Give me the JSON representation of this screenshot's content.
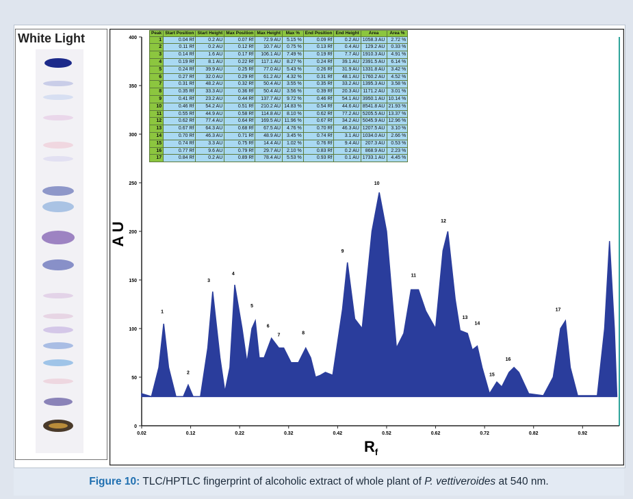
{
  "plate_label": "White Light",
  "caption": {
    "label": "Figure 10:",
    "text_before": "TLC/HPTLC fingerprint of alcoholic extract of whole plant of",
    "species": "P. vettiveroides",
    "text_after": "at 540 nm."
  },
  "table": {
    "header": [
      "Peak",
      "Start Position",
      "Start Height",
      "Max Position",
      "Max Height",
      "Max %",
      "End Position",
      "End Height",
      "Area",
      "Area %"
    ],
    "rows": [
      [
        "1",
        "0.04 Rf",
        "0.2 AU",
        "0.07 Rf",
        "72.9 AU",
        "5.15 %",
        "0.09 Rf",
        "0.2 AU",
        "1058.3 AU",
        "2.72 %"
      ],
      [
        "2",
        "0.11 Rf",
        "0.2 AU",
        "0.12 Rf",
        "10.7 AU",
        "0.75 %",
        "0.13 Rf",
        "0.4 AU",
        "129.2 AU",
        "0.33 %"
      ],
      [
        "3",
        "0.14 Rf",
        "1.6 AU",
        "0.17 Rf",
        "106.1 AU",
        "7.49 %",
        "0.19 Rf",
        "7.7 AU",
        "1910.3 AU",
        "4.91 %"
      ],
      [
        "4",
        "0.19 Rf",
        "8.1 AU",
        "0.22 Rf",
        "117.1 AU",
        "8.27 %",
        "0.24 Rf",
        "39.1 AU",
        "2391.5 AU",
        "6.14 %"
      ],
      [
        "5",
        "0.24 Rf",
        "39.9 AU",
        "0.25 Rf",
        "77.0 AU",
        "5.43 %",
        "0.26 Rf",
        "31.9 AU",
        "1331.8 AU",
        "3.42 %"
      ],
      [
        "6",
        "0.27 Rf",
        "32.0 AU",
        "0.29 Rf",
        "61.2 AU",
        "4.32 %",
        "0.31 Rf",
        "48.1 AU",
        "1760.2 AU",
        "4.52 %"
      ],
      [
        "7",
        "0.31 Rf",
        "48.2 AU",
        "0.32 Rf",
        "50.4 AU",
        "3.55 %",
        "0.35 Rf",
        "33.2 AU",
        "1395.3 AU",
        "3.58 %"
      ],
      [
        "8",
        "0.35 Rf",
        "33.3 AU",
        "0.36 Rf",
        "50.4 AU",
        "3.56 %",
        "0.39 Rf",
        "20.3 AU",
        "1171.2 AU",
        "3.01 %"
      ],
      [
        "9",
        "0.41 Rf",
        "23.2 AU",
        "0.44 Rf",
        "137.7 AU",
        "9.72 %",
        "0.46 Rf",
        "54.1 AU",
        "3950.1 AU",
        "10.14 %"
      ],
      [
        "10",
        "0.46 Rf",
        "54.2 AU",
        "0.51 Rf",
        "210.2 AU",
        "14.83 %",
        "0.54 Rf",
        "44.6 AU",
        "8541.8 AU",
        "21.93 %"
      ],
      [
        "11",
        "0.55 Rf",
        "44.9 AU",
        "0.58 Rf",
        "114.8 AU",
        "8.10 %",
        "0.62 Rf",
        "77.2 AU",
        "5205.5 AU",
        "13.37 %"
      ],
      [
        "12",
        "0.62 Rf",
        "77.4 AU",
        "0.64 Rf",
        "169.5 AU",
        "11.96 %",
        "0.67 Rf",
        "34.2 AU",
        "5045.9 AU",
        "12.96 %"
      ],
      [
        "13",
        "0.67 Rf",
        "64.3 AU",
        "0.68 Rf",
        "67.5 AU",
        "4.76 %",
        "0.70 Rf",
        "46.3 AU",
        "1207.5 AU",
        "3.10 %"
      ],
      [
        "14",
        "0.70 Rf",
        "46.3 AU",
        "0.71 Rf",
        "48.9 AU",
        "3.45 %",
        "0.74 Rf",
        "3.1 AU",
        "1034.0 AU",
        "2.66 %"
      ],
      [
        "15",
        "0.74 Rf",
        "3.3 AU",
        "0.75 Rf",
        "14.4 AU",
        "1.02 %",
        "0.76 Rf",
        "9.4 AU",
        "207.3 AU",
        "0.53 %"
      ],
      [
        "16",
        "0.77 Rf",
        "9.6 AU",
        "0.79 Rf",
        "29.7 AU",
        "2.10 %",
        "0.83 Rf",
        "0.2 AU",
        "868.9 AU",
        "2.23 %"
      ],
      [
        "17",
        "0.84 Rf",
        "0.2 AU",
        "0.89 Rf",
        "78.4 AU",
        "5.53 %",
        "0.93 Rf",
        "0.1 AU",
        "1733.1 AU",
        "4.45 %"
      ]
    ]
  },
  "chart_data": {
    "type": "area",
    "ylabel": "A U",
    "xlabel": "R",
    "xlabel_subscript": "f",
    "color": "#2a3d9c",
    "x": [
      0.02,
      0.04,
      0.055,
      0.065,
      0.075,
      0.09,
      0.105,
      0.115,
      0.125,
      0.14,
      0.155,
      0.165,
      0.18,
      0.19,
      0.2,
      0.21,
      0.225,
      0.235,
      0.245,
      0.252,
      0.26,
      0.27,
      0.285,
      0.3,
      0.31,
      0.325,
      0.34,
      0.355,
      0.365,
      0.375,
      0.385,
      0.395,
      0.41,
      0.43,
      0.44,
      0.455,
      0.47,
      0.49,
      0.505,
      0.52,
      0.54,
      0.555,
      0.57,
      0.585,
      0.6,
      0.62,
      0.635,
      0.645,
      0.66,
      0.67,
      0.685,
      0.695,
      0.705,
      0.715,
      0.73,
      0.745,
      0.755,
      0.77,
      0.78,
      0.79,
      0.81,
      0.84,
      0.86,
      0.875,
      0.885,
      0.895,
      0.91,
      0.95,
      0.965,
      0.975,
      0.985,
      0.99
    ],
    "values": [
      33,
      30,
      60,
      105,
      60,
      30,
      30,
      42,
      30,
      30,
      80,
      138,
      70,
      35,
      60,
      145,
      100,
      65,
      100,
      108,
      70,
      70,
      90,
      80,
      80,
      65,
      65,
      80,
      70,
      50,
      52,
      55,
      52,
      120,
      168,
      110,
      100,
      200,
      240,
      200,
      80,
      95,
      140,
      140,
      118,
      100,
      180,
      200,
      130,
      98,
      95,
      78,
      82,
      60,
      33,
      45,
      40,
      55,
      60,
      55,
      33,
      31,
      50,
      100,
      108,
      60,
      31,
      31,
      100,
      190,
      100,
      31
    ],
    "xlim": [
      0.02,
      0.995
    ],
    "ylim": [
      0,
      400
    ],
    "xticks": [
      0.02,
      0.12,
      0.22,
      0.32,
      0.42,
      0.52,
      0.62,
      0.72,
      0.82,
      0.92
    ],
    "yticks": [
      0,
      50,
      100,
      150,
      200,
      250,
      300,
      350,
      400
    ],
    "peak_labels": {
      "labels": [
        "1",
        "2",
        "3",
        "4",
        "5",
        "6",
        "7",
        "8",
        "9",
        "10",
        "11",
        "12",
        "13",
        "14",
        "15",
        "16",
        "17"
      ],
      "x": [
        0.062,
        0.115,
        0.157,
        0.207,
        0.245,
        0.278,
        0.3,
        0.35,
        0.43,
        0.5,
        0.575,
        0.636,
        0.68,
        0.705,
        0.735,
        0.768,
        0.87
      ],
      "y": [
        116,
        53,
        148,
        155,
        122,
        101,
        92,
        94,
        178,
        248,
        153,
        209,
        110,
        104,
        51,
        67,
        118
      ]
    }
  }
}
